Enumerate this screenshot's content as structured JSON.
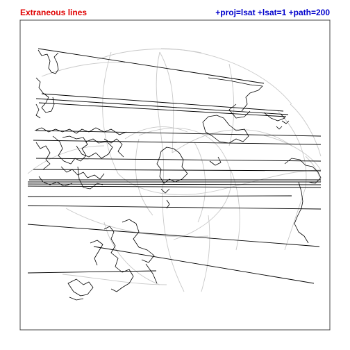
{
  "header": {
    "left_label": "Extraneous lines",
    "right_label": "+proj=lsat +lsat=1 +path=200"
  },
  "colors": {
    "left_label": "#e00000",
    "right_label": "#0000cc",
    "coastline": "#000000",
    "graticule": "#c8c8c8",
    "frame": "#444444",
    "background": "#ffffff"
  },
  "map": {
    "projection": "lsat",
    "lsat": 1,
    "path": 200
  }
}
